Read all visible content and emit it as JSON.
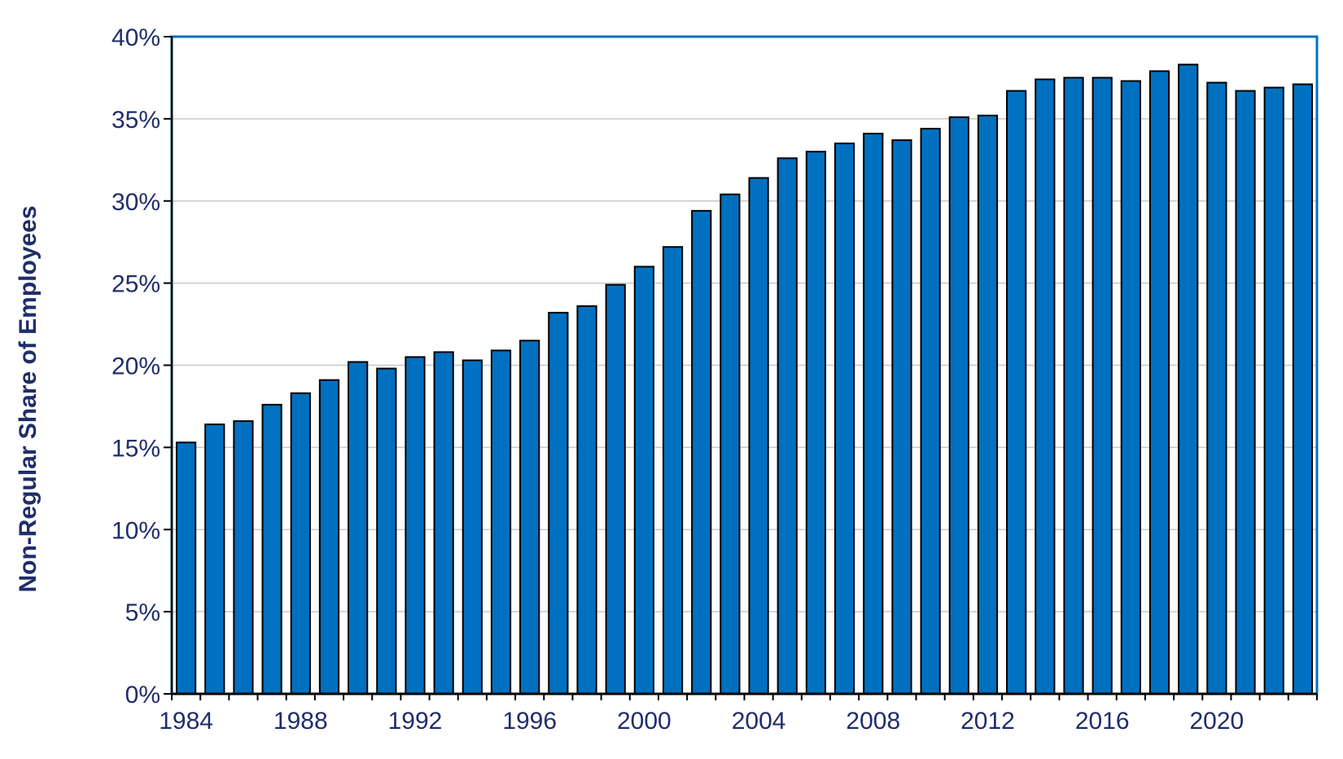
{
  "chart_data": {
    "type": "bar",
    "title": "",
    "xlabel": "",
    "ylabel": "Non-Regular Share of Employees",
    "ylim": [
      0,
      40
    ],
    "y_tick_values": [
      0,
      5,
      10,
      15,
      20,
      25,
      30,
      35,
      40
    ],
    "y_tick_labels": [
      "0%",
      "5%",
      "10%",
      "15%",
      "20%",
      "25%",
      "30%",
      "35%",
      "40%"
    ],
    "x_tick_labels": [
      "1984",
      "1988",
      "1992",
      "1996",
      "2000",
      "2004",
      "2008",
      "2012",
      "2016",
      "2020"
    ],
    "grid": true,
    "legend": "none",
    "bar_color": "#0070c0",
    "frame_color": "#0070c0",
    "categories": [
      1984,
      1985,
      1986,
      1987,
      1988,
      1989,
      1990,
      1991,
      1992,
      1993,
      1994,
      1995,
      1996,
      1997,
      1998,
      1999,
      2000,
      2001,
      2002,
      2003,
      2004,
      2005,
      2006,
      2007,
      2008,
      2009,
      2010,
      2011,
      2012,
      2013,
      2014,
      2015,
      2016,
      2017,
      2018,
      2019,
      2020,
      2021,
      2022,
      2023
    ],
    "values": [
      15.3,
      16.4,
      16.6,
      17.6,
      18.3,
      19.1,
      20.2,
      19.8,
      20.5,
      20.8,
      20.3,
      20.9,
      21.5,
      23.2,
      23.6,
      24.9,
      26.0,
      27.2,
      29.4,
      30.4,
      31.4,
      32.6,
      33.0,
      33.5,
      34.1,
      33.7,
      34.4,
      35.1,
      35.2,
      36.7,
      37.4,
      37.5,
      37.5,
      37.3,
      37.9,
      38.3,
      37.2,
      36.7,
      36.9,
      37.1
    ]
  }
}
